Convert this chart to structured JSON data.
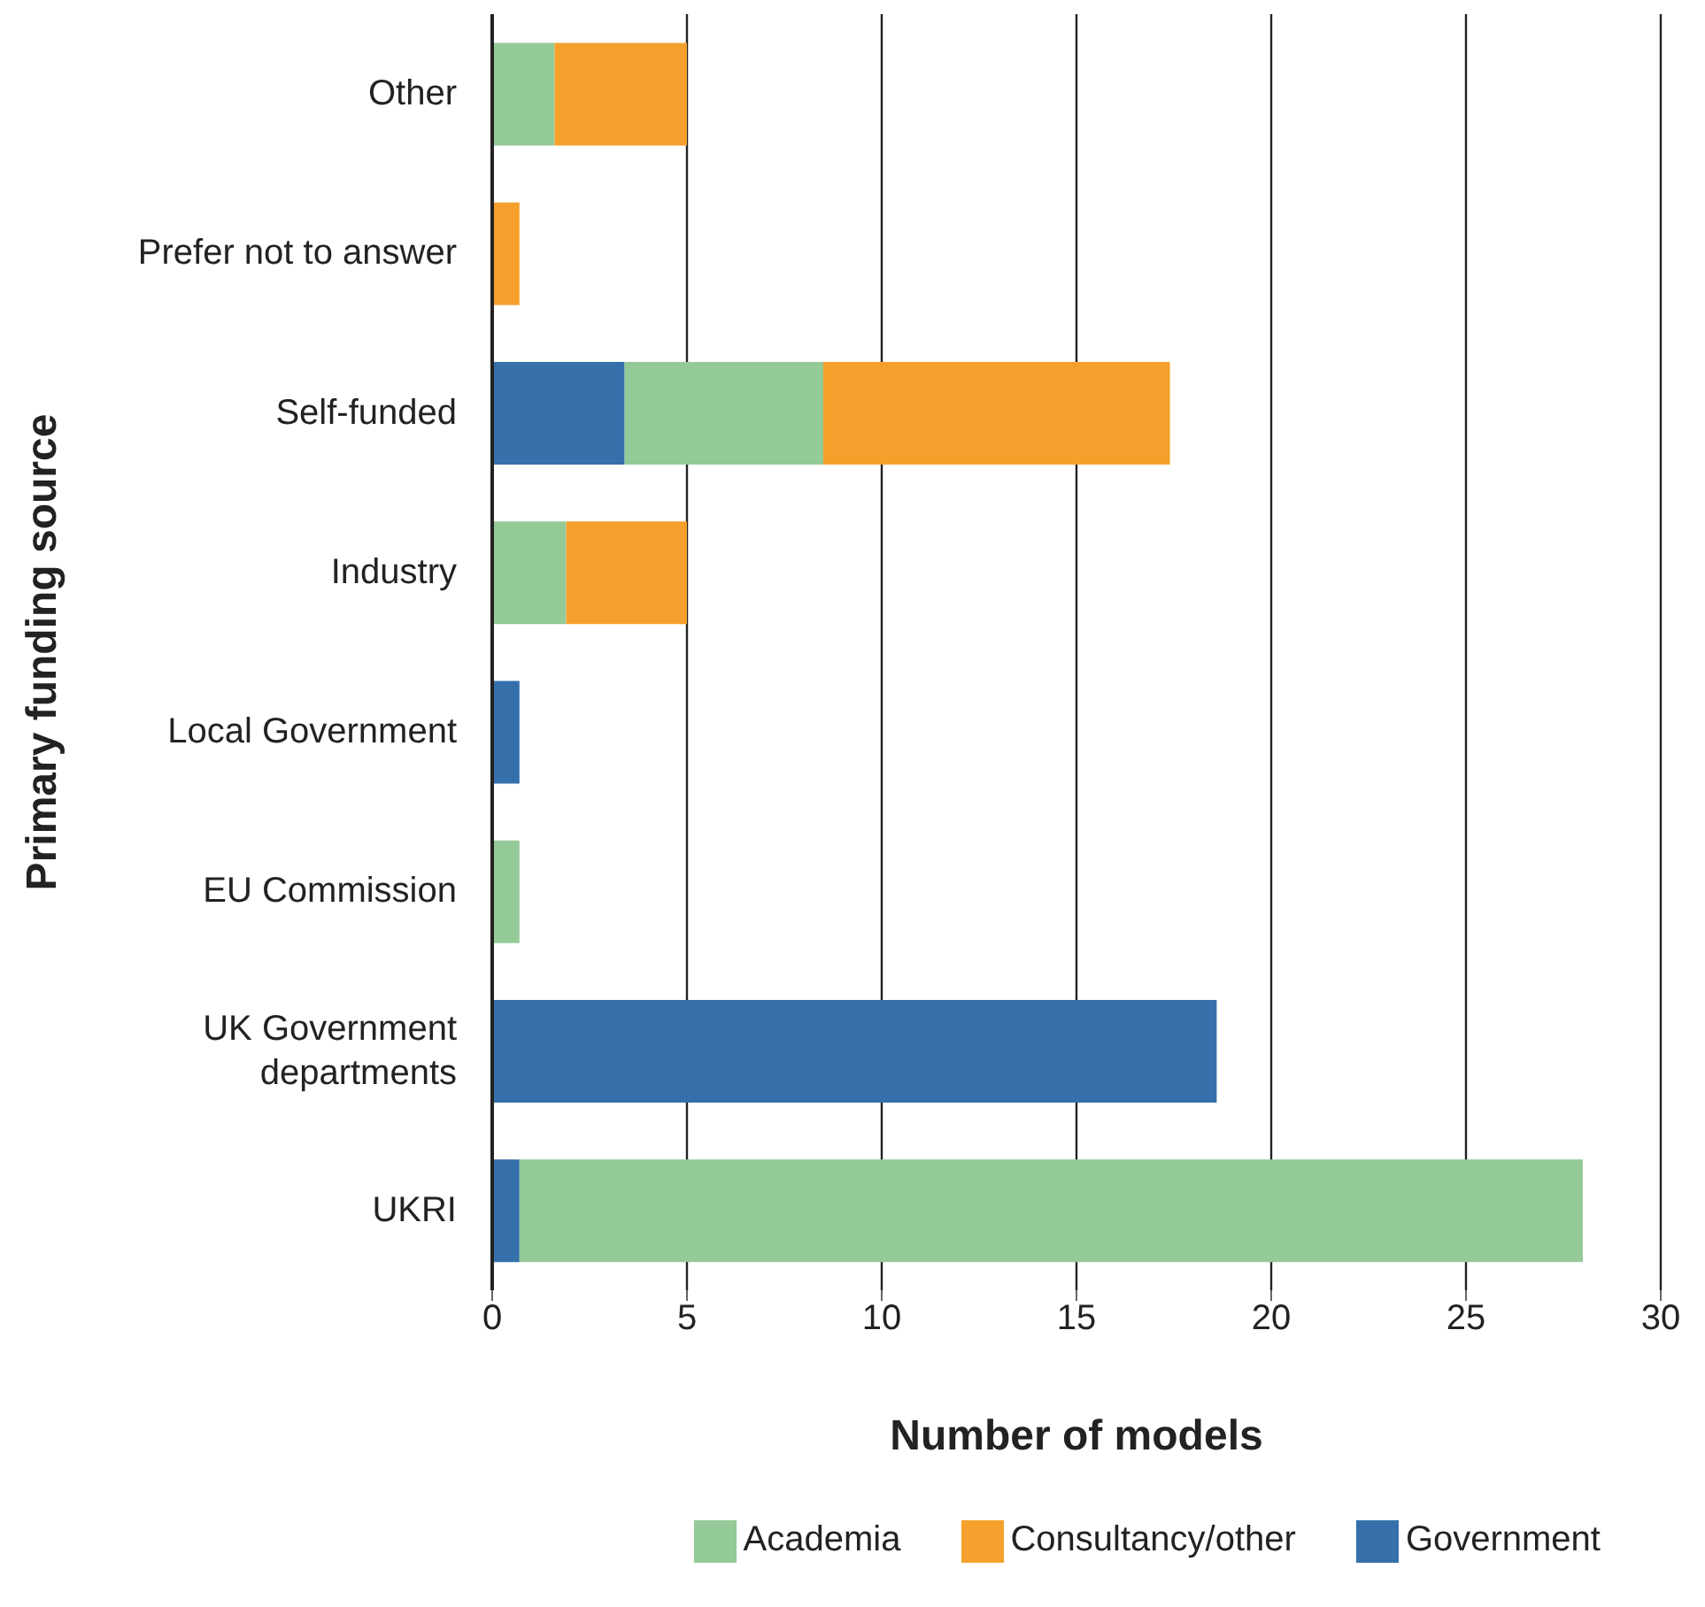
{
  "chart_data": {
    "type": "bar",
    "orientation": "horizontal",
    "stacked": true,
    "xlabel": "Number of models",
    "ylabel": "Primary funding source",
    "categories": [
      "Other",
      "Prefer not to answer",
      "Self-funded",
      "Industry",
      "Local Government",
      "EU Commission",
      "UK Government departments",
      "UKRI"
    ],
    "series": [
      {
        "name": "Government",
        "color": "#3570aa",
        "values": [
          0,
          0,
          3.4,
          0,
          0.7,
          0,
          18.6,
          0.7
        ]
      },
      {
        "name": "Academia",
        "color": "#94c998",
        "values": [
          1.6,
          0,
          5.1,
          1.9,
          0,
          0.7,
          0,
          27.3
        ]
      },
      {
        "name": "Consultancy/other",
        "color": "#f5a02c",
        "values": [
          3.4,
          0.7,
          8.9,
          3.1,
          0,
          0,
          0,
          0
        ]
      }
    ],
    "xlim": [
      0,
      30
    ],
    "xticks": [
      0,
      5,
      10,
      15,
      20,
      25,
      30
    ],
    "grid": "x",
    "legend": "bottom"
  }
}
